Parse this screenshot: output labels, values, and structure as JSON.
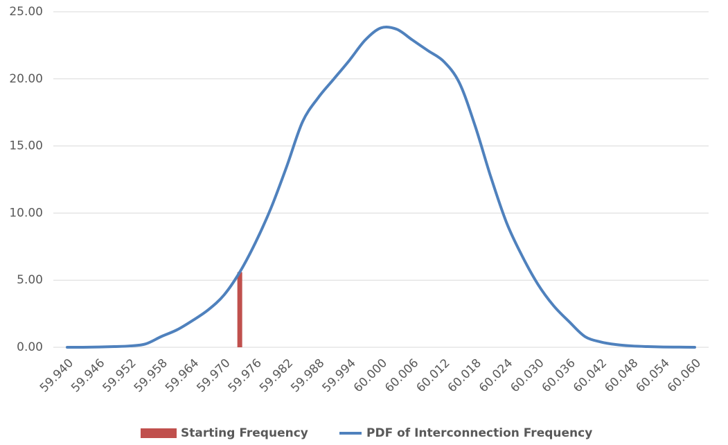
{
  "chart_data": {
    "type": "line",
    "xlim": [
      59.94,
      60.06
    ],
    "xticks": [
      {
        "value": 59.94,
        "label": "59.940"
      },
      {
        "value": 59.946,
        "label": "59.946"
      },
      {
        "value": 59.952,
        "label": "59.952"
      },
      {
        "value": 59.958,
        "label": "59.958"
      },
      {
        "value": 59.964,
        "label": "59.964"
      },
      {
        "value": 59.97,
        "label": "59.970"
      },
      {
        "value": 59.976,
        "label": "59.976"
      },
      {
        "value": 59.982,
        "label": "59.982"
      },
      {
        "value": 59.988,
        "label": "59.988"
      },
      {
        "value": 59.994,
        "label": "59.994"
      },
      {
        "value": 60,
        "label": "60.000"
      },
      {
        "value": 60.006,
        "label": "60.006"
      },
      {
        "value": 60.012,
        "label": "60.012"
      },
      {
        "value": 60.018,
        "label": "60.018"
      },
      {
        "value": 60.024,
        "label": "60.024"
      },
      {
        "value": 60.03,
        "label": "60.030"
      },
      {
        "value": 60.036,
        "label": "60.036"
      },
      {
        "value": 60.042,
        "label": "60.042"
      },
      {
        "value": 60.048,
        "label": "60.048"
      },
      {
        "value": 60.054,
        "label": "60.054"
      },
      {
        "value": 60.06,
        "label": "60.060"
      }
    ],
    "ylim": [
      0,
      25
    ],
    "yticks": [
      {
        "value": 0,
        "label": "0.00"
      },
      {
        "value": 5,
        "label": "5.00"
      },
      {
        "value": 10,
        "label": "10.00"
      },
      {
        "value": 15,
        "label": "15.00"
      },
      {
        "value": 20,
        "label": "20.00"
      },
      {
        "value": 25,
        "label": "25.00"
      }
    ],
    "grid": true,
    "legend": "bottom",
    "series": [
      {
        "name": "Starting Frequency",
        "type": "bar",
        "color": "#c0504d",
        "x": [
          59.973
        ],
        "values": [
          5.6
        ]
      },
      {
        "name": "PDF of Interconnection Frequency",
        "type": "line",
        "color": "#4f81bd",
        "x": [
          59.94,
          59.943,
          59.946,
          59.949,
          59.952,
          59.955,
          59.958,
          59.961,
          59.964,
          59.967,
          59.97,
          59.973,
          59.976,
          59.979,
          59.982,
          59.985,
          59.988,
          59.991,
          59.994,
          59.997,
          60,
          60.003,
          60.006,
          60.009,
          60.012,
          60.015,
          60.018,
          60.021,
          60.024,
          60.027,
          60.03,
          60.033,
          60.036,
          60.039,
          60.042,
          60.045,
          60.048,
          60.051,
          60.054,
          60.057,
          60.06
        ],
        "values": [
          0,
          0,
          0.02,
          0.05,
          0.1,
          0.25,
          0.8,
          1.3,
          2.0,
          2.8,
          3.9,
          5.6,
          7.8,
          10.4,
          13.5,
          16.8,
          18.6,
          20.0,
          21.4,
          22.9,
          23.8,
          23.7,
          22.9,
          22.1,
          21.3,
          19.7,
          16.5,
          12.7,
          9.3,
          6.8,
          4.7,
          3.1,
          1.9,
          0.8,
          0.4,
          0.2,
          0.1,
          0.05,
          0.02,
          0.01,
          0
        ]
      }
    ]
  }
}
